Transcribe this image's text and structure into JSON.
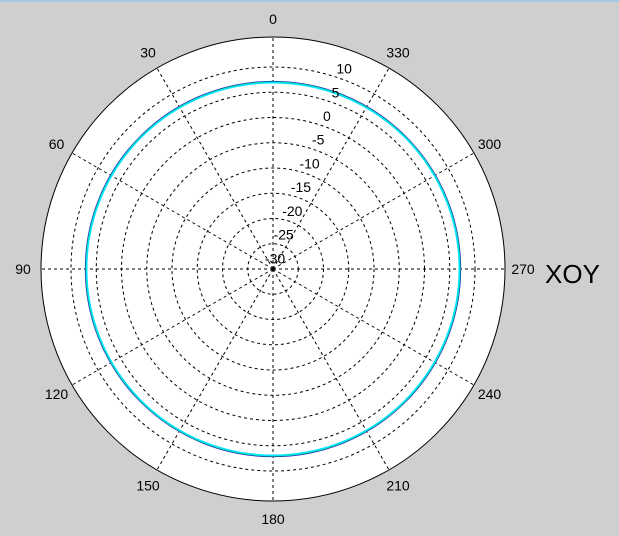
{
  "chart_data": {
    "type": "polar",
    "title": "XOY",
    "angle_ticks": [
      0,
      30,
      60,
      90,
      120,
      150,
      180,
      210,
      240,
      270,
      300,
      330
    ],
    "angle_tick_labels": [
      "0",
      "30",
      "60",
      "90",
      "120",
      "150",
      "180",
      "210",
      "240",
      "270",
      "300",
      "330"
    ],
    "angle_direction": "counterclockwise",
    "zero_angle_at": "top",
    "radial_ticks": [
      10,
      5,
      0,
      -5,
      -10,
      -15,
      -20,
      -25,
      -30
    ],
    "radial_tick_labels": [
      "10",
      "5",
      "0",
      "-5",
      "-10",
      "-15",
      "-20",
      "-25",
      "-30"
    ],
    "r_range": [
      -30,
      10
    ],
    "grid": true,
    "series": [
      {
        "color": "#0000ff",
        "r_constant": 7.1
      },
      {
        "color": "#ff0000",
        "r_constant": 7.0
      },
      {
        "color": "#00cc66",
        "r_constant": 7.0
      },
      {
        "color": "#00e5ff",
        "r_constant": 6.9
      }
    ]
  }
}
